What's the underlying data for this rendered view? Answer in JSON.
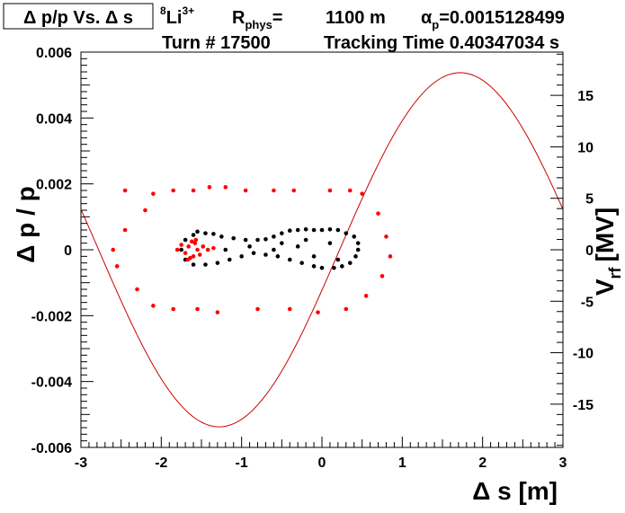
{
  "chart_data": {
    "type": "scatter",
    "title": "Δ p/p Vs. Δ s",
    "xlabel": "Δ s [m]",
    "ylabel": "Δ p / p",
    "y2label": "V",
    "y2label_sub": "rf",
    "y2label_unit": "[MV]",
    "xlim": [
      -3,
      3
    ],
    "ylim": [
      -0.006,
      0.006
    ],
    "y2lim": [
      -19.2,
      19.2
    ],
    "x_ticks": [
      -3,
      -2,
      -1,
      0,
      1,
      2,
      3
    ],
    "x_tick_labels": [
      "-3",
      "-2",
      "-1",
      "0",
      "1",
      "2",
      "3"
    ],
    "y_ticks": [
      -0.006,
      -0.004,
      -0.002,
      0,
      0.002,
      0.004,
      0.006
    ],
    "y_tick_labels": [
      "-0.006",
      "-0.004",
      "-0.002",
      "0",
      "0.002",
      "0.004",
      "0.006"
    ],
    "y2_ticks": [
      -15,
      -10,
      -5,
      0,
      5,
      10,
      15
    ],
    "y2_tick_labels": [
      "-15",
      "-10",
      "-5",
      "0",
      "5",
      "10",
      "15"
    ],
    "series": [
      {
        "name": "black particles",
        "color": "#000000",
        "points": [
          [
            -1.55,
            0.00055
          ],
          [
            -1.45,
            0.0005
          ],
          [
            -1.35,
            0.00048
          ],
          [
            -1.25,
            0.0004
          ],
          [
            -1.1,
            0.00035
          ],
          [
            -0.95,
            0.0003
          ],
          [
            -0.8,
            0.0003
          ],
          [
            -0.7,
            0.00032
          ],
          [
            -0.6,
            0.0004
          ],
          [
            -0.5,
            0.0005
          ],
          [
            -0.4,
            0.00058
          ],
          [
            -0.3,
            0.0006
          ],
          [
            -0.2,
            0.00062
          ],
          [
            -0.1,
            0.0006
          ],
          [
            0.0,
            0.0006
          ],
          [
            0.1,
            0.00062
          ],
          [
            0.2,
            0.0006
          ],
          [
            0.3,
            0.0005
          ],
          [
            0.4,
            0.0004
          ],
          [
            0.45,
            0.0002
          ],
          [
            0.45,
            0.0
          ],
          [
            0.42,
            -0.0002
          ],
          [
            0.35,
            -0.0004
          ],
          [
            0.25,
            -0.0005
          ],
          [
            0.15,
            -0.00055
          ],
          [
            0.0,
            -0.00055
          ],
          [
            -0.1,
            -0.0005
          ],
          [
            -0.25,
            -0.0004
          ],
          [
            -0.4,
            -0.0003
          ],
          [
            -0.55,
            -0.0002
          ],
          [
            -0.7,
            -0.00015
          ],
          [
            -0.85,
            -0.0001
          ],
          [
            -1.0,
            -0.0002
          ],
          [
            -1.15,
            -0.0003
          ],
          [
            -1.3,
            -0.0004
          ],
          [
            -1.45,
            -0.00045
          ],
          [
            -1.6,
            -0.00045
          ],
          [
            -1.7,
            -0.0003
          ],
          [
            -1.75,
            0.0
          ],
          [
            -1.7,
            0.0003
          ],
          [
            -1.6,
            0.00045
          ],
          [
            -0.5,
            0.0002
          ],
          [
            -0.3,
            0.0001
          ],
          [
            -0.1,
            -0.0002
          ],
          [
            0.1,
            0.0002
          ],
          [
            0.2,
            -0.0003
          ],
          [
            -0.2,
            0.0003
          ],
          [
            -0.6,
            0.0
          ],
          [
            -0.9,
            0.0001
          ],
          [
            -1.2,
            0.0
          ]
        ]
      },
      {
        "name": "red particles",
        "color": "#ff0000",
        "points": [
          [
            -2.45,
            0.0018
          ],
          [
            -2.1,
            0.0017
          ],
          [
            -1.85,
            0.0018
          ],
          [
            -1.6,
            0.0018
          ],
          [
            -1.4,
            0.0019
          ],
          [
            -1.2,
            0.0019
          ],
          [
            -0.95,
            0.0018
          ],
          [
            -0.6,
            0.0018
          ],
          [
            -0.35,
            0.0018
          ],
          [
            0.1,
            0.0018
          ],
          [
            0.35,
            0.0018
          ],
          [
            0.5,
            0.0017
          ],
          [
            -2.2,
            0.0012
          ],
          [
            -2.45,
            0.0006
          ],
          [
            -2.6,
            0.0
          ],
          [
            -2.55,
            -0.0005
          ],
          [
            -2.3,
            -0.0012
          ],
          [
            -2.1,
            -0.0017
          ],
          [
            -1.85,
            -0.0018
          ],
          [
            -1.55,
            -0.0018
          ],
          [
            -1.3,
            -0.0019
          ],
          [
            -0.8,
            -0.0018
          ],
          [
            -0.4,
            -0.0018
          ],
          [
            -0.05,
            -0.0019
          ],
          [
            0.3,
            -0.0018
          ],
          [
            0.55,
            -0.0014
          ],
          [
            0.75,
            -0.0008
          ],
          [
            0.85,
            -0.0002
          ],
          [
            0.8,
            0.0004
          ],
          [
            0.7,
            0.0011
          ],
          [
            -1.62,
            0.00025
          ],
          [
            -1.58,
            0.0002
          ],
          [
            -1.66,
            0.0001
          ],
          [
            -1.55,
            0.0
          ],
          [
            -1.7,
            -0.0001
          ],
          [
            -1.6,
            -0.0002
          ],
          [
            -1.52,
            -0.00015
          ],
          [
            -1.48,
            0.0001
          ],
          [
            -1.75,
            0.00015
          ],
          [
            -1.64,
            -0.00025
          ],
          [
            -1.42,
            0.0
          ],
          [
            -1.8,
            0.0
          ],
          [
            -1.57,
            0.0003
          ],
          [
            -1.67,
            -0.0003
          ],
          [
            -1.35,
            5e-05
          ]
        ]
      },
      {
        "name": "V_rf (sine)",
        "color": "#cc0000",
        "type": "line",
        "axis": "y2",
        "function": "V = 17.2 * sin(2π(x - 0.22)/6)",
        "x_range": [
          -3,
          3
        ]
      }
    ],
    "legend": "none"
  },
  "header": {
    "title_box": "Δ p/p Vs. Δ s",
    "ion_mass": "8",
    "ion_symbol": "Li",
    "ion_charge": "3+",
    "rphys_label": "R",
    "rphys_sub": "phys",
    "rphys_eq": "=",
    "rphys_value": "1100 m",
    "alpha_label": "α",
    "alpha_sub": "p",
    "alpha_value": "=0.0015128499",
    "turn_label": "Turn # 17500",
    "tracking_label": "Tracking Time 0.40347034 s"
  }
}
